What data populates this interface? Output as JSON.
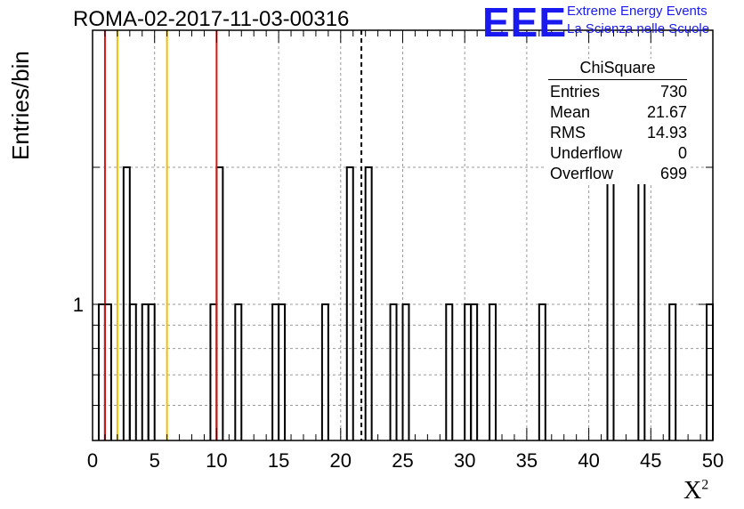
{
  "title": "ROMA-02-2017-11-03-00316",
  "ylabel": "Entries/bin",
  "xlabel": {
    "base": "X",
    "sup": "2"
  },
  "logo": {
    "text": "EEE",
    "line1": "Extreme Energy Events",
    "line2": "La Scienza nelle Scuole"
  },
  "stats": {
    "title": "ChiSquare",
    "rows": [
      {
        "label": "Entries",
        "value": "730"
      },
      {
        "label": "Mean",
        "value": "21.67"
      },
      {
        "label": "RMS",
        "value": "14.93"
      },
      {
        "label": "Underflow",
        "value": "0"
      },
      {
        "label": "Overflow",
        "value": "699"
      }
    ]
  },
  "colors": {
    "red": "#dd1111",
    "orange": "#f0c000",
    "hist": "#000000",
    "grid": "#999999"
  },
  "chart_data": {
    "type": "bar",
    "xlim": [
      0,
      50
    ],
    "ylog": true,
    "bin_width": 0.5,
    "x_ticks": [
      0,
      5,
      10,
      15,
      20,
      25,
      30,
      35,
      40,
      45,
      50
    ],
    "y_tick_labels": [
      1
    ],
    "bins": [
      {
        "x": 0.5,
        "y": 1
      },
      {
        "x": 1.0,
        "y": 1
      },
      {
        "x": 2.5,
        "y": 2
      },
      {
        "x": 3.0,
        "y": 1
      },
      {
        "x": 4.0,
        "y": 1
      },
      {
        "x": 4.5,
        "y": 1
      },
      {
        "x": 9.5,
        "y": 1
      },
      {
        "x": 10.0,
        "y": 2
      },
      {
        "x": 11.5,
        "y": 1
      },
      {
        "x": 14.5,
        "y": 1
      },
      {
        "x": 15.0,
        "y": 1
      },
      {
        "x": 18.5,
        "y": 1
      },
      {
        "x": 20.5,
        "y": 2
      },
      {
        "x": 22.0,
        "y": 2
      },
      {
        "x": 24.0,
        "y": 1
      },
      {
        "x": 25.0,
        "y": 1
      },
      {
        "x": 28.5,
        "y": 1
      },
      {
        "x": 30.0,
        "y": 1
      },
      {
        "x": 30.5,
        "y": 1
      },
      {
        "x": 32.0,
        "y": 1
      },
      {
        "x": 36.0,
        "y": 1
      },
      {
        "x": 41.5,
        "y": 2
      },
      {
        "x": 44.0,
        "y": 2
      },
      {
        "x": 46.5,
        "y": 1
      },
      {
        "x": 49.5,
        "y": 1
      }
    ],
    "vlines": [
      {
        "x": 1.0,
        "color": "red"
      },
      {
        "x": 10.0,
        "color": "red"
      },
      {
        "x": 2.0,
        "color": "orange"
      },
      {
        "x": 6.0,
        "color": "orange"
      },
      {
        "x": 21.67,
        "color": "black",
        "dashed": true
      }
    ],
    "grid": true
  }
}
